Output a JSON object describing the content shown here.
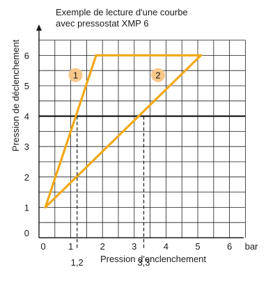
{
  "chart_data": {
    "type": "line",
    "title": "Exemple de lecture d'une courbe\navec pressostat XMP 6",
    "xlabel": "Pression d'enclenchement",
    "ylabel": "Pression de déclenchement",
    "x_unit": "bar",
    "xlim": [
      0,
      6.5
    ],
    "ylim": [
      0,
      6.5
    ],
    "x_ticks": [
      "0",
      "1",
      "2",
      "3",
      "4",
      "5",
      "6"
    ],
    "y_ticks": [
      "0",
      "1",
      "2",
      "3",
      "4",
      "5",
      "6"
    ],
    "grid": true,
    "series": [
      {
        "name": "1",
        "x": [
          0.2,
          1.8,
          1.8
        ],
        "y": [
          1,
          6,
          6
        ]
      },
      {
        "name": "2",
        "x": [
          0.2,
          5.1,
          5.1
        ],
        "y": [
          1,
          6,
          6
        ]
      }
    ],
    "top_edge": {
      "x": [
        1.8,
        5.1
      ],
      "y": [
        6,
        6
      ]
    },
    "reference_line": {
      "y": 4
    },
    "readings": [
      {
        "label": "1,2",
        "x": 1.2,
        "y": 4
      },
      {
        "label": "3,3",
        "x": 3.3,
        "y": 4
      }
    ],
    "colors": {
      "curve": "#f2a816",
      "marker_fill": "#f7c88a",
      "grid": "#1a1a1a"
    }
  }
}
